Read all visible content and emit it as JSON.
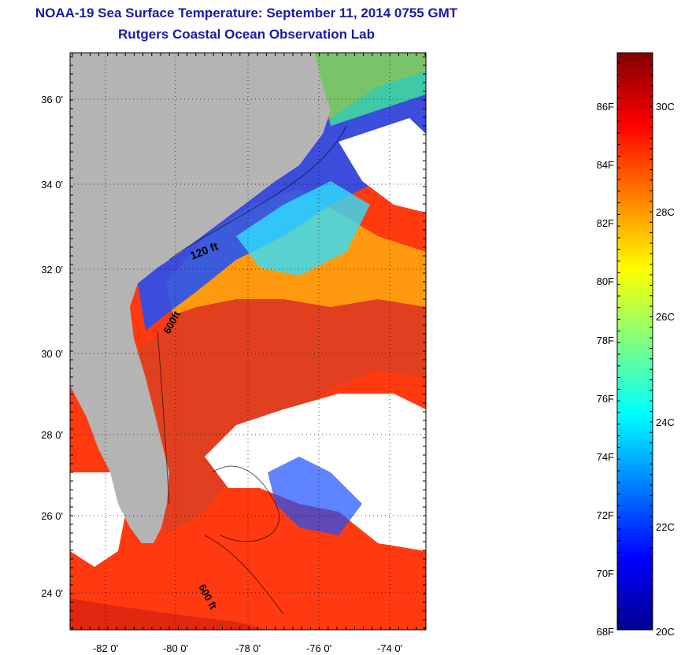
{
  "header": {
    "title": "NOAA-19 Sea Surface Temperature:  September 11, 2014 0755 GMT",
    "subtitle": "Rutgers Coastal Ocean Observation Lab"
  },
  "map": {
    "lat_labels": [
      "36 0'",
      "34 0'",
      "32 0'",
      "30 0'",
      "28 0'",
      "26 0'",
      "24 0'"
    ],
    "lon_labels": [
      "-82 0'",
      "-80 0'",
      "-78 0'",
      "-76 0'",
      "-74 0'"
    ],
    "contour_labels": [
      "120 ft",
      "600ft",
      "600 ft"
    ],
    "colors": {
      "land": "#b4b4b4",
      "clouds": "#ffffff",
      "border": "#000000"
    }
  },
  "colorbar": {
    "fahrenheit_labels": [
      "86F",
      "84F",
      "82F",
      "80F",
      "78F",
      "76F",
      "74F",
      "72F",
      "70F",
      "68F"
    ],
    "celsius_labels": [
      "30C",
      "28C",
      "26C",
      "24C",
      "22C",
      "20C"
    ],
    "range_c": [
      20,
      31.2
    ],
    "colormap": "jet"
  }
}
